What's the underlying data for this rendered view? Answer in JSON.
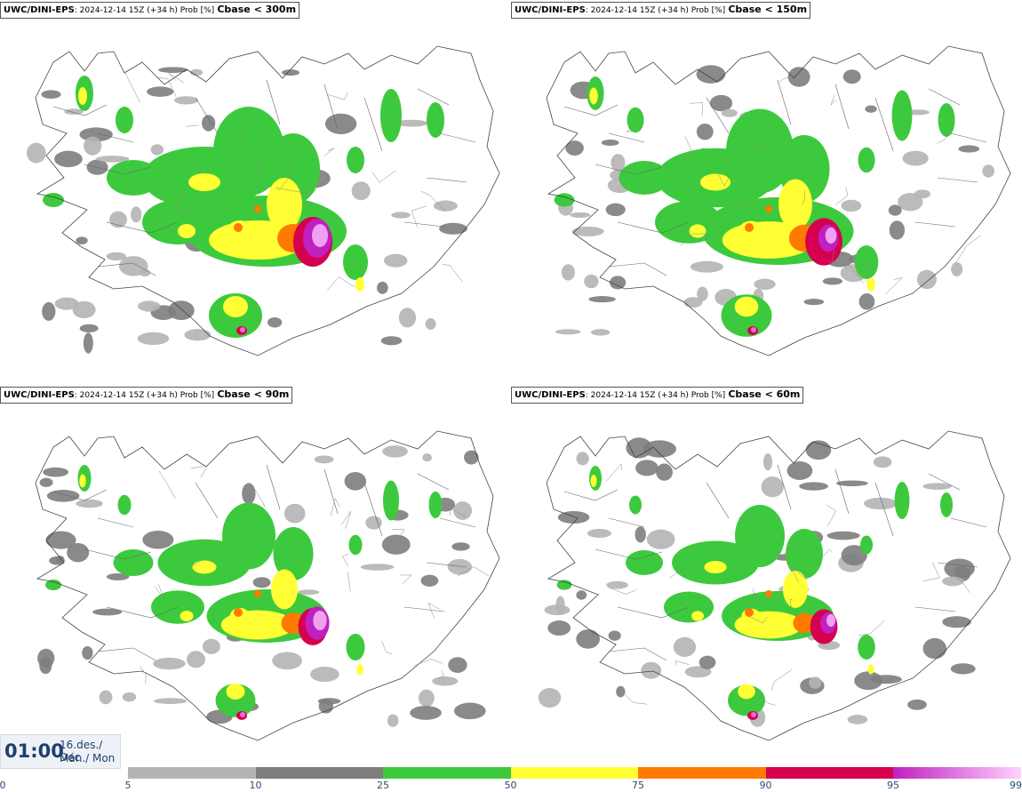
{
  "panels": [
    {
      "source": "UWC/DINI-EPS",
      "meta": ": 2024-12-14 15Z (+34 h) Prob [%]",
      "threshold": "Cbase < 300m"
    },
    {
      "source": "UWC/DINI-EPS",
      "meta": ": 2024-12-14 15Z (+34 h) Prob [%]",
      "threshold": "Cbase < 150m"
    },
    {
      "source": "UWC/DINI-EPS",
      "meta": ": 2024-12-14 15Z (+34 h) Prob [%]",
      "threshold": "Cbase < 90m"
    },
    {
      "source": "UWC/DINI-EPS",
      "meta": ": 2024-12-14 15Z (+34 h) Prob [%]",
      "threshold": "Cbase < 60m"
    }
  ],
  "valid_time": {
    "time": "01:00",
    "date_line1": "16.des./ Dec",
    "date_line2": "Mán./ Mon"
  },
  "colorbar": {
    "ticks": [
      "0",
      "5",
      "10",
      "25",
      "50",
      "75",
      "90",
      "95",
      "99"
    ],
    "segments": [
      {
        "from": 5,
        "to": 10,
        "color": "#b4b4b4"
      },
      {
        "from": 10,
        "to": 25,
        "color": "#7d7d7d"
      },
      {
        "from": 25,
        "to": 50,
        "color": "#3dc93d"
      },
      {
        "from": 50,
        "to": 75,
        "color": "#ffff33"
      },
      {
        "from": 75,
        "to": 90,
        "color": "#ff7a00"
      },
      {
        "from": 90,
        "to": 95,
        "color": "#d6004f"
      },
      {
        "from": 95,
        "to": 99,
        "color": "gradient-magenta-pink"
      }
    ]
  }
}
